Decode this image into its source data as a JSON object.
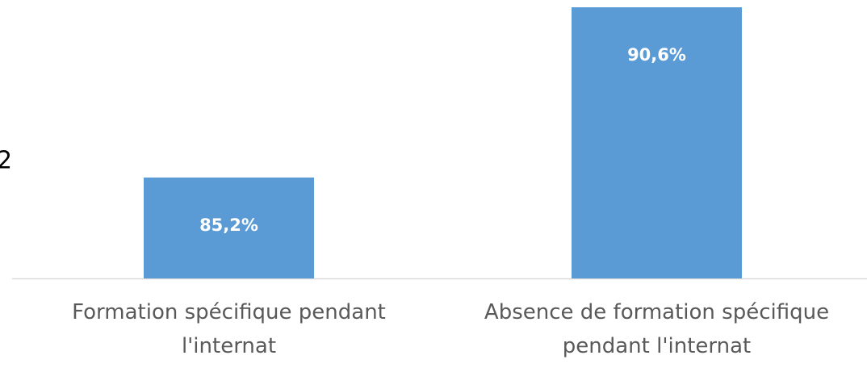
{
  "chart_data": {
    "type": "bar",
    "annotation": "2",
    "categories": [
      "Formation spécifique pendant l'internat",
      "Absence de formation spécifique pendant l'internat"
    ],
    "values": [
      85.2,
      90.6
    ],
    "value_labels": [
      "85,2%",
      "90,6%"
    ],
    "color": "#5b9bd5",
    "ylim": [
      82,
      91
    ],
    "grid": false
  }
}
